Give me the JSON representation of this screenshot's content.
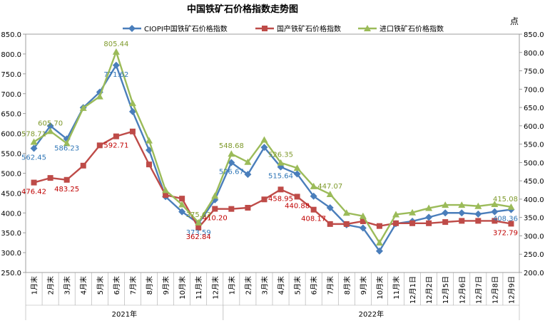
{
  "chart_data": {
    "type": "line",
    "title": "中国铁矿石价格指数走势图",
    "right_axis_unit": "点",
    "categories": [
      "1月末",
      "2月末",
      "3月末",
      "4月末",
      "5月末",
      "6月末",
      "7月末",
      "8月末",
      "9月末",
      "10月末",
      "11月末",
      "12月末",
      "1月末",
      "2月末",
      "3月末",
      "4月末",
      "5月末",
      "6月末",
      "7月末",
      "8月末",
      "9月末",
      "10月末",
      "11月末",
      "12月1日",
      "12月2日",
      "12月5日",
      "12月6日",
      "12月7日",
      "12月8日",
      "12月9日"
    ],
    "groups": [
      {
        "label": "2021年",
        "start": 0,
        "end": 11
      },
      {
        "label": "2022年",
        "start": 12,
        "end": 29
      }
    ],
    "ylim": [
      250,
      850
    ],
    "ylim_right": [
      200,
      850
    ],
    "y_ticks": [
      "250.0",
      "300.0",
      "350.0",
      "400.0",
      "450.0",
      "500.0",
      "550.0",
      "600.0",
      "650.0",
      "700.0",
      "750.0",
      "800.0",
      "850.0"
    ],
    "y_ticks_right": [
      "200.0",
      "250.0",
      "300.0",
      "350.0",
      "400.0",
      "450.0",
      "500.0",
      "550.0",
      "600.0",
      "650.0",
      "700.0",
      "750.0",
      "800.0",
      "850.0"
    ],
    "legend_position": "top",
    "series": [
      {
        "name": "CIOPI中国铁矿石价格指数",
        "axis": "left",
        "color": "#4a7ebb",
        "marker": "diamond",
        "values": [
          562.45,
          619,
          586.23,
          665,
          704,
          771.62,
          655,
          558,
          441,
          403,
          373.59,
          433,
          526.67,
          497,
          565,
          515.64,
          498,
          442,
          413,
          370,
          362,
          304,
          373,
          379,
          389,
          400,
          400,
          397,
          403,
          408.36
        ]
      },
      {
        "name": "国产铁矿石价格指数",
        "axis": "left",
        "color": "#be4b48",
        "marker": "square",
        "values": [
          476.42,
          488,
          483.25,
          519,
          570,
          592.71,
          605,
          522,
          445,
          436,
          362.84,
          410.2,
          410,
          413,
          434,
          458.95,
          440.88,
          408.17,
          372,
          372,
          379,
          367,
          374,
          374,
          374,
          377,
          380,
          380,
          380,
          372.79
        ]
      },
      {
        "name": "进口铁矿石价格指数",
        "axis": "left",
        "color": "#9bbb59",
        "marker": "triangle",
        "values": [
          578.71,
          605.7,
          575,
          664,
          693,
          805.44,
          676,
          582,
          457,
          421,
          375.63,
          443,
          548.68,
          528,
          584,
          526.35,
          513,
          467,
          447.07,
          400,
          392,
          325,
          396,
          401,
          412,
          420,
          420,
          417,
          422,
          415.08
        ]
      }
    ],
    "data_labels": [
      {
        "series": 0,
        "index": 0,
        "text": "562.45"
      },
      {
        "series": 0,
        "index": 2,
        "text": "586.23"
      },
      {
        "series": 0,
        "index": 5,
        "text": "771.62"
      },
      {
        "series": 0,
        "index": 10,
        "text": "373.59"
      },
      {
        "series": 0,
        "index": 12,
        "text": "526.67"
      },
      {
        "series": 0,
        "index": 15,
        "text": "515.64"
      },
      {
        "series": 0,
        "index": 29,
        "text": "408.36"
      },
      {
        "series": 1,
        "index": 0,
        "text": "476.42"
      },
      {
        "series": 1,
        "index": 2,
        "text": "483.25"
      },
      {
        "series": 1,
        "index": 5,
        "text": "592.71"
      },
      {
        "series": 1,
        "index": 10,
        "text": "362.84"
      },
      {
        "series": 1,
        "index": 11,
        "text": "410.20"
      },
      {
        "series": 1,
        "index": 15,
        "text": "458.95"
      },
      {
        "series": 1,
        "index": 16,
        "text": "440.88"
      },
      {
        "series": 1,
        "index": 17,
        "text": "408.17"
      },
      {
        "series": 1,
        "index": 29,
        "text": "372.79"
      },
      {
        "series": 2,
        "index": 0,
        "text": "578.71"
      },
      {
        "series": 2,
        "index": 1,
        "text": "605.70"
      },
      {
        "series": 2,
        "index": 5,
        "text": "805.44"
      },
      {
        "series": 2,
        "index": 10,
        "text": "375.63"
      },
      {
        "series": 2,
        "index": 12,
        "text": "548.68"
      },
      {
        "series": 2,
        "index": 15,
        "text": "526.35"
      },
      {
        "series": 2,
        "index": 18,
        "text": "447.07"
      },
      {
        "series": 2,
        "index": 29,
        "text": "415.08"
      }
    ]
  }
}
